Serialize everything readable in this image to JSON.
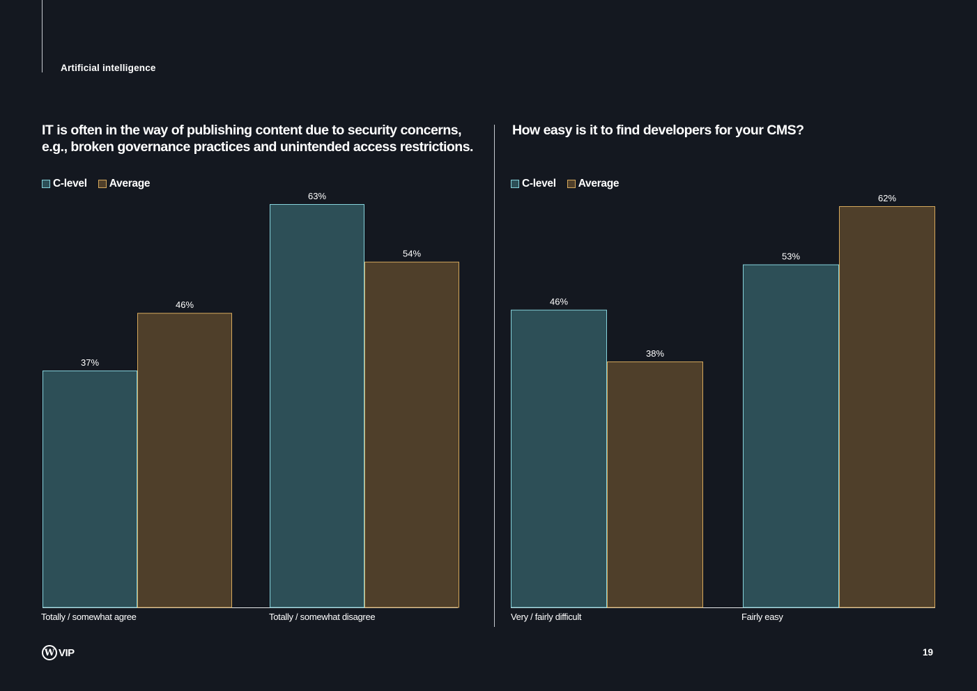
{
  "section": "Artificial intelligence",
  "page_number": "19",
  "logo_text": "VIP",
  "colors": {
    "background": "#141820",
    "c_level_fill": "#2d4f57",
    "c_level_stroke": "#86d3dc",
    "average_fill": "#4f3f2a",
    "average_stroke": "#d6a95c"
  },
  "legend": {
    "c_level": "C-level",
    "average": "Average"
  },
  "chart_data": [
    {
      "type": "bar",
      "title": "IT is often in the way of publishing content due to security concerns, e.g., broken governance practices and unintended access restrictions.",
      "title_lines": [
        "IT is often in the way of publishing content due to security concerns,",
        "e.g., broken governance practices and unintended access restrictions."
      ],
      "categories": [
        "Totally / somewhat agree",
        "Totally / somewhat disagree"
      ],
      "series": [
        {
          "name": "C-level",
          "values": [
            37,
            63
          ],
          "labels": [
            "37%",
            "63%"
          ]
        },
        {
          "name": "Average",
          "values": [
            46,
            54
          ],
          "labels": [
            "46%",
            "54%"
          ]
        }
      ],
      "ylim": [
        0,
        63
      ],
      "legend": "top-left",
      "grid": false
    },
    {
      "type": "bar",
      "title": "How easy is it to find developers for your CMS?",
      "title_lines": [
        "How easy is it to find developers for your CMS?"
      ],
      "categories": [
        "Very / fairly difficult",
        "Fairly easy"
      ],
      "series": [
        {
          "name": "C-level",
          "values": [
            46,
            53
          ],
          "labels": [
            "46%",
            "53%"
          ]
        },
        {
          "name": "Average",
          "values": [
            38,
            62
          ],
          "labels": [
            "38%",
            "62%"
          ]
        }
      ],
      "ylim": [
        0,
        62
      ],
      "legend": "top-left",
      "grid": false
    }
  ]
}
